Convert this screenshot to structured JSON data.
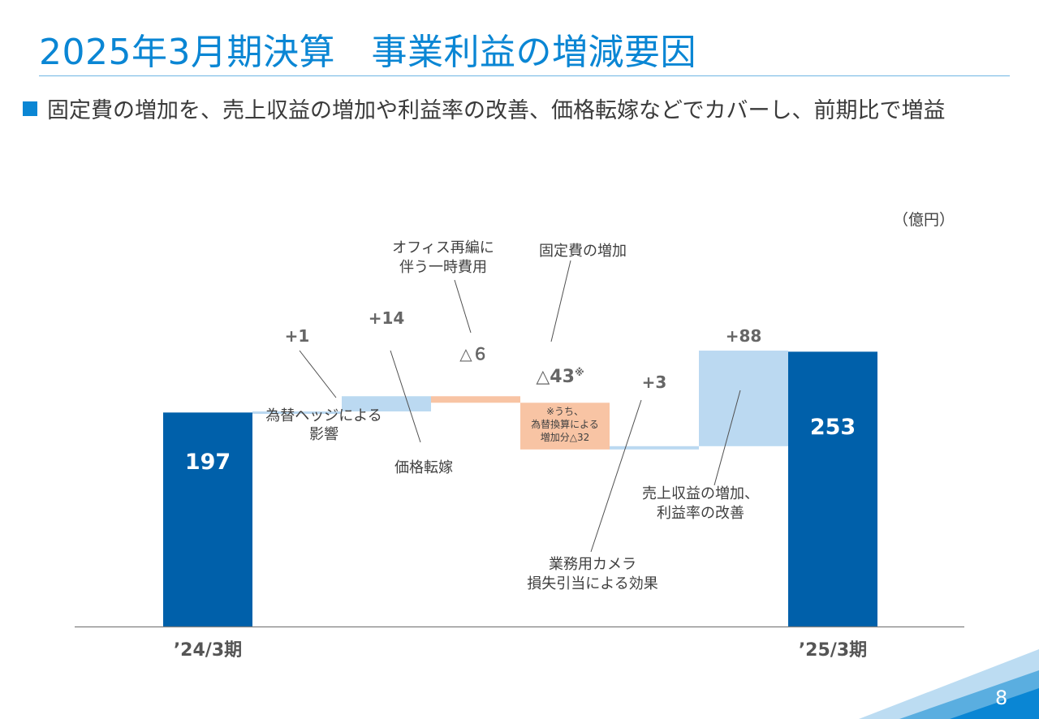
{
  "slide": {
    "title": "2025年3月期決算　事業利益の増減要因",
    "subtitle": "固定費の増加を、売上収益の増加や利益率の改善、価格転嫁などでカバーし、前期比で増益",
    "unit": "（億円）",
    "page_number": "8",
    "colors": {
      "title": "#0a86d4",
      "total_bar": "#0060aa",
      "increase_bar": "#bbd9f1",
      "decrease_bar": "#f8c4a4"
    }
  },
  "chart_data": {
    "type": "bar",
    "subtype": "waterfall",
    "unit": "億円",
    "categories": [
      "’24/3期",
      "為替ヘッジによる影響",
      "価格転嫁",
      "オフィス再編に伴う一時費用",
      "固定費の増加",
      "業務用カメラ損失引当による効果",
      "売上収益の増加、利益率の改善",
      "’25/3期"
    ],
    "steps": [
      {
        "kind": "total",
        "value": 197,
        "label": "197",
        "axis_label": "’24/3期"
      },
      {
        "kind": "increase",
        "value": 1,
        "label": "+1",
        "annotation": [
          "為替ヘッジによる",
          "影響"
        ]
      },
      {
        "kind": "increase",
        "value": 14,
        "label": "+14",
        "annotation": [
          "価格転嫁"
        ]
      },
      {
        "kind": "decrease",
        "value": -6,
        "label": "△６",
        "annotation": [
          "オフィス再編に",
          "伴う一時費用"
        ]
      },
      {
        "kind": "decrease",
        "value": -43,
        "label": "△43",
        "label_mark": "※",
        "annotation": [
          "固定費の増加"
        ],
        "footnote": [
          "※うち、",
          "為替換算による",
          "増加分△32"
        ]
      },
      {
        "kind": "increase",
        "value": 3,
        "label": "+3",
        "annotation": [
          "業務用カメラ",
          "損失引当による効果"
        ]
      },
      {
        "kind": "increase",
        "value": 88,
        "label": "+88",
        "annotation": [
          "売上収益の増加、",
          "利益率の改善"
        ]
      },
      {
        "kind": "total",
        "value": 253,
        "label": "253",
        "axis_label": "’25/3期"
      }
    ],
    "ylim": [
      0,
      260
    ],
    "grid": false,
    "legend": "none"
  }
}
